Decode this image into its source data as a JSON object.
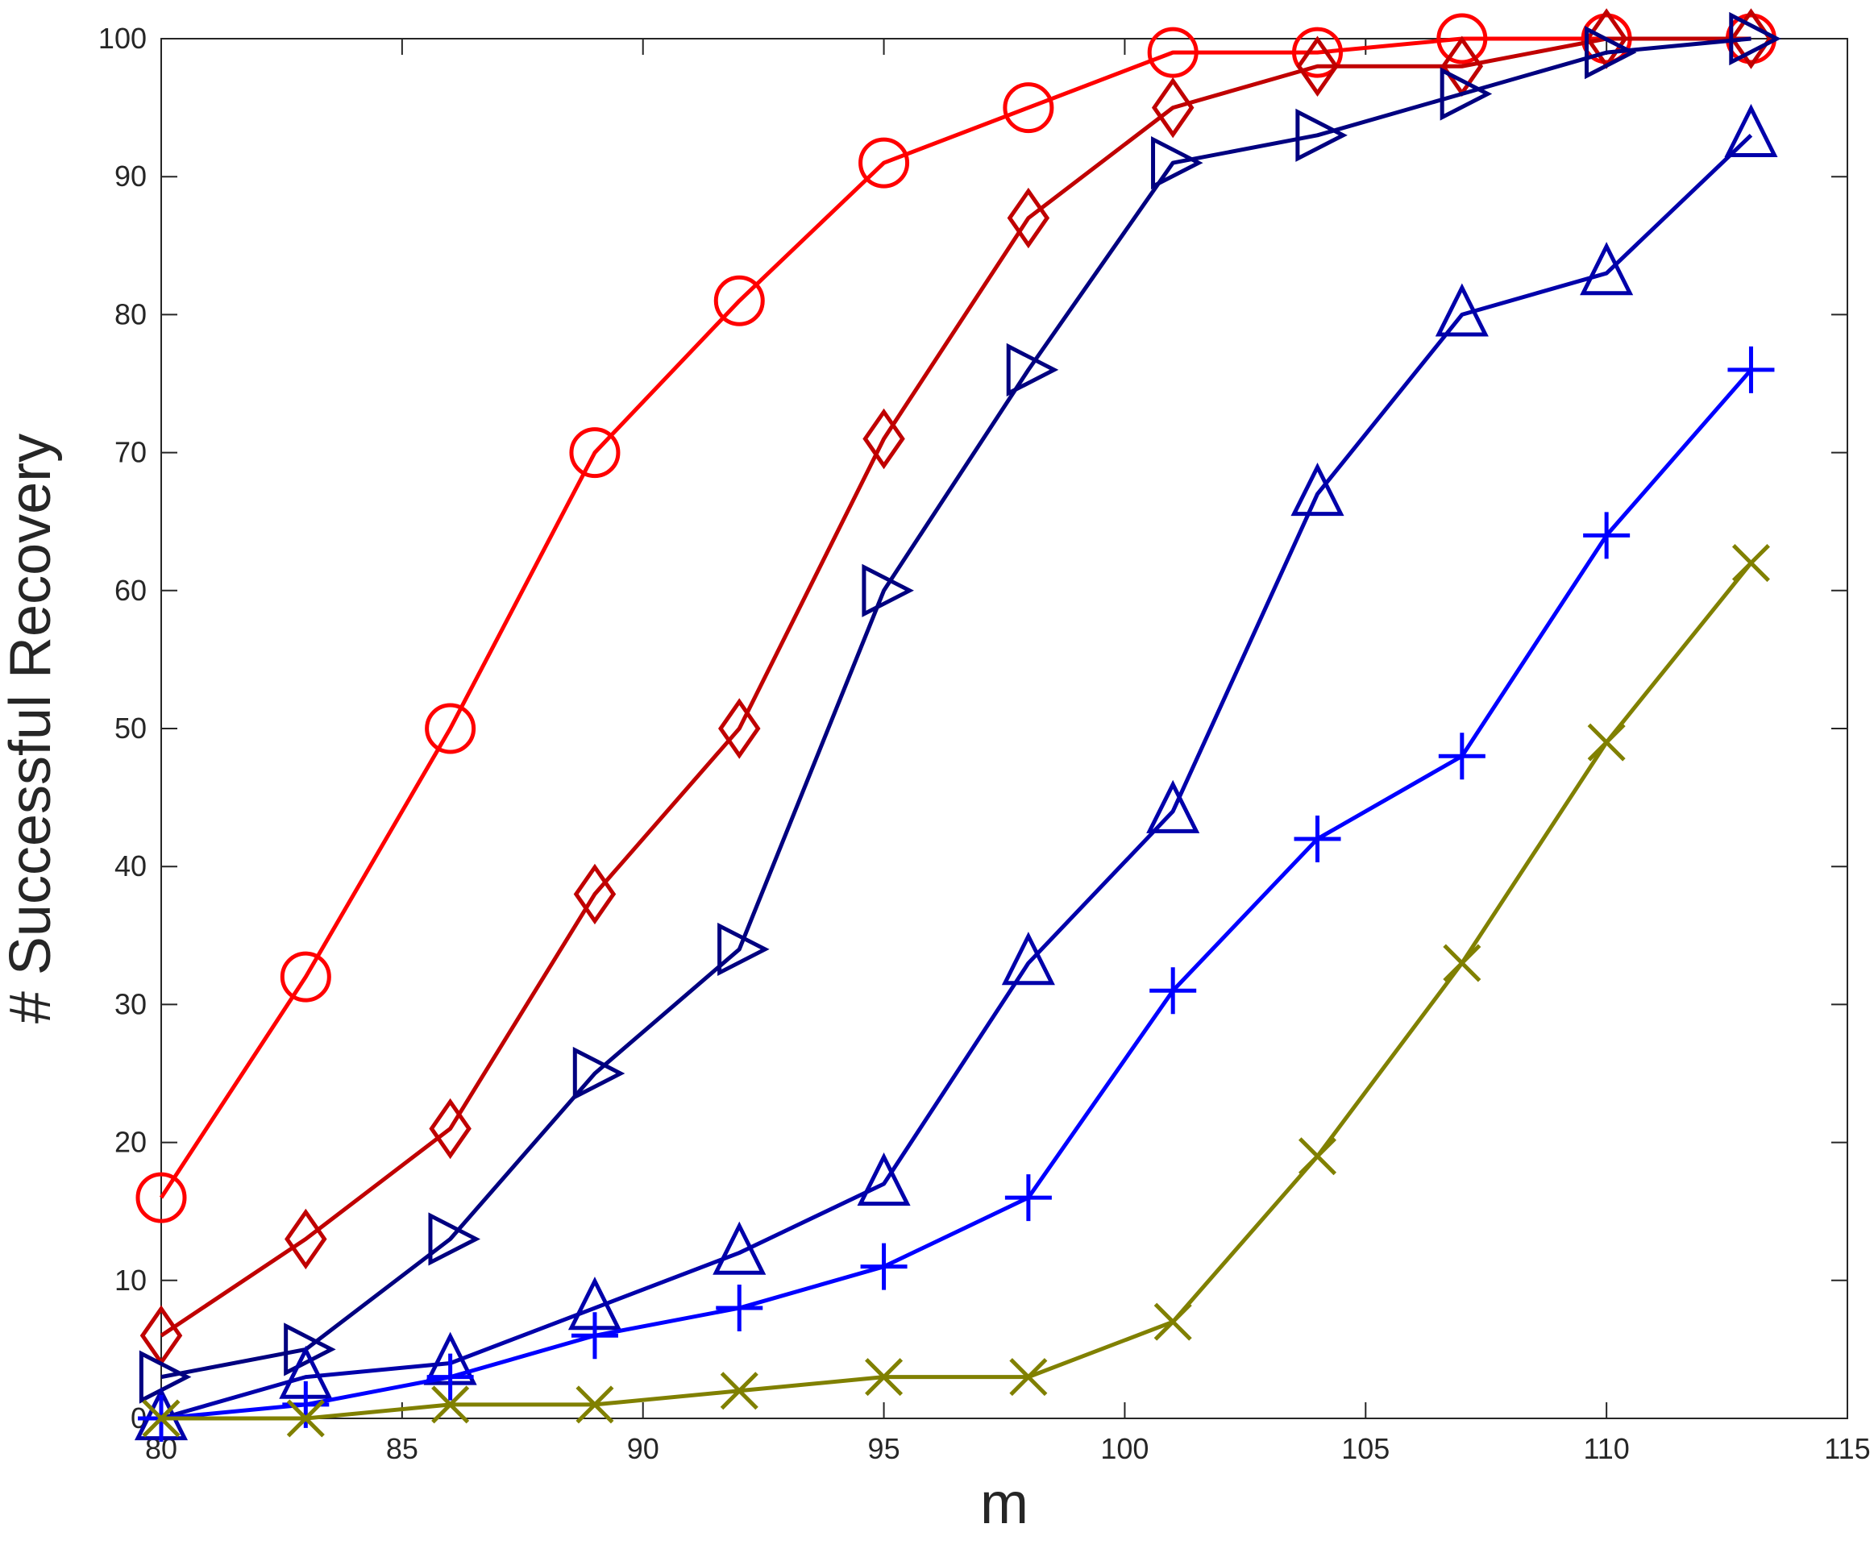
{
  "chart_data": {
    "type": "line",
    "title": "",
    "xlabel": "m",
    "ylabel": "# Successful Recovery",
    "xlim": [
      80,
      115
    ],
    "ylim": [
      0,
      100
    ],
    "xticks": [
      "80",
      "85",
      "90",
      "95",
      "100",
      "105",
      "110",
      "115"
    ],
    "yticks": [
      "0",
      "10",
      "20",
      "30",
      "40",
      "50",
      "60",
      "70",
      "80",
      "90",
      "100"
    ],
    "grid": false,
    "legend": "none",
    "x": [
      80,
      83,
      86,
      89,
      92,
      95,
      98,
      101,
      104,
      107,
      110,
      113
    ],
    "series": [
      {
        "marker": "circle",
        "color": "#ff0000",
        "values": [
          16,
          32,
          50,
          70,
          81,
          91,
          95,
          99,
          99,
          100,
          100,
          100
        ]
      },
      {
        "marker": "diamond",
        "color": "#c00000",
        "values": [
          6,
          13,
          21,
          38,
          50,
          71,
          87,
          95,
          98,
          98,
          100,
          100
        ]
      },
      {
        "marker": "triangle-right",
        "color": "#000080",
        "values": [
          3,
          5,
          13,
          25,
          34,
          60,
          76,
          91,
          93,
          96,
          99,
          100
        ]
      },
      {
        "marker": "triangle-up",
        "color": "#0000aa",
        "values": [
          0,
          3,
          4,
          8,
          12,
          17,
          33,
          44,
          67,
          80,
          83,
          93
        ]
      },
      {
        "marker": "plus",
        "color": "#0000ff",
        "values": [
          0,
          1,
          3,
          6,
          8,
          11,
          16,
          31,
          42,
          48,
          64,
          76
        ]
      },
      {
        "marker": "x",
        "color": "#808000",
        "values": [
          0,
          0,
          1,
          1,
          2,
          3,
          3,
          7,
          19,
          33,
          49,
          62
        ]
      }
    ]
  }
}
